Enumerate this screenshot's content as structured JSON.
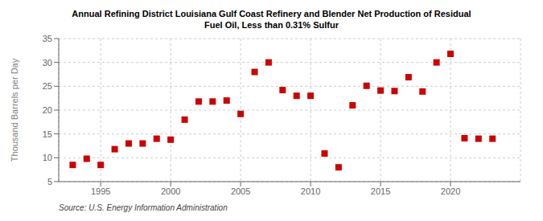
{
  "chart_data": {
    "type": "scatter",
    "title": "Annual Refining District Louisiana Gulf Coast Refinery and Blender Net Production of Residual\nFuel Oil, Less than 0.31% Sulfur",
    "y_label": "Thousand Barrels per Day",
    "annotations": [
      "Source: U.S. Energy Information Administration"
    ],
    "x": [
      1993,
      1994,
      1995,
      1996,
      1997,
      1998,
      1999,
      2000,
      2001,
      2002,
      2003,
      2004,
      2005,
      2006,
      2007,
      2008,
      2009,
      2010,
      2011,
      2012,
      2013,
      2014,
      2015,
      2016,
      2017,
      2018,
      2019,
      2020,
      2021,
      2022,
      2023
    ],
    "values": [
      8.5,
      9.8,
      8.5,
      11.8,
      13.0,
      13.0,
      14.0,
      13.8,
      18.0,
      21.8,
      21.8,
      22.0,
      19.2,
      28.0,
      30.0,
      24.2,
      23.0,
      23.0,
      10.9,
      8.0,
      21.0,
      25.1,
      24.1,
      24.0,
      26.9,
      23.9,
      30.0,
      31.8,
      14.1,
      14.0,
      14.0
    ],
    "color": "#cc0000",
    "marker": "square",
    "grid": true,
    "xlim": [
      1992,
      2025
    ],
    "xticks": [
      1995,
      2000,
      2005,
      2010,
      2015,
      2020
    ],
    "ylim": [
      5,
      35
    ],
    "yticks": [
      5,
      10,
      15,
      20,
      25,
      30,
      35
    ]
  }
}
